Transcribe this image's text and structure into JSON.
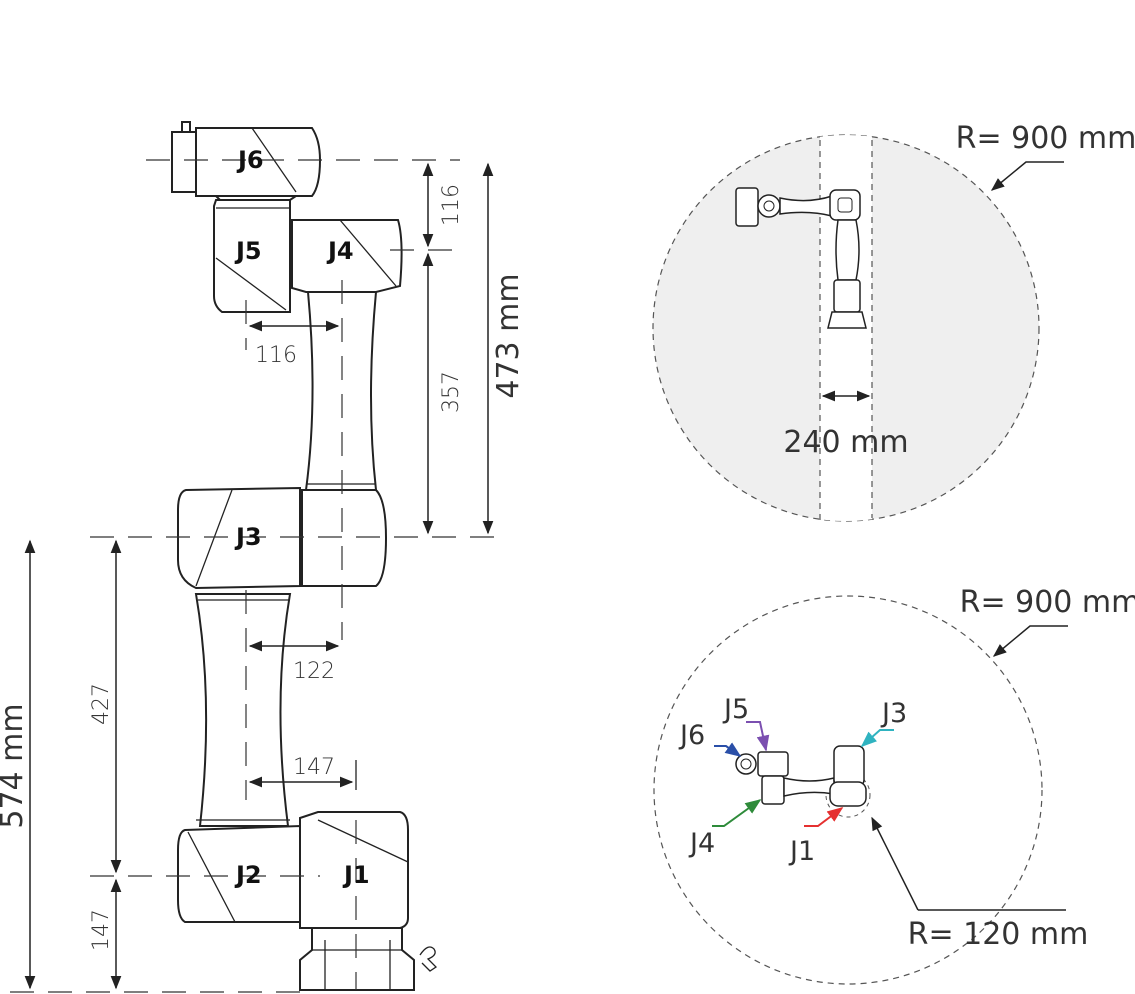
{
  "side_view": {
    "joints": {
      "j1": "J1",
      "j2": "J2",
      "j3": "J3",
      "j4": "J4",
      "j5": "J5",
      "j6": "J6"
    },
    "dimensions": {
      "d116_vertical": "116",
      "d357": "357",
      "d473": "473 mm",
      "d116_horizontal": "116",
      "d122": "122",
      "d147_horizontal": "147",
      "d427": "427",
      "d147_vertical": "147",
      "d574": "574 mm"
    }
  },
  "top_view": {
    "radius": "R= 900 mm",
    "gap": "240 mm"
  },
  "plan_view": {
    "radius": "R= 900 mm",
    "inner_radius": "R= 120 mm",
    "joints": {
      "j1": "J1",
      "j3": "J3",
      "j4": "J4",
      "j5": "J5",
      "j6": "J6"
    },
    "colors": {
      "j1": "#e53030",
      "j3": "#2fb3c0",
      "j4": "#2e8b3a",
      "j5": "#7b4fb0",
      "j6": "#2a4fa8"
    }
  }
}
